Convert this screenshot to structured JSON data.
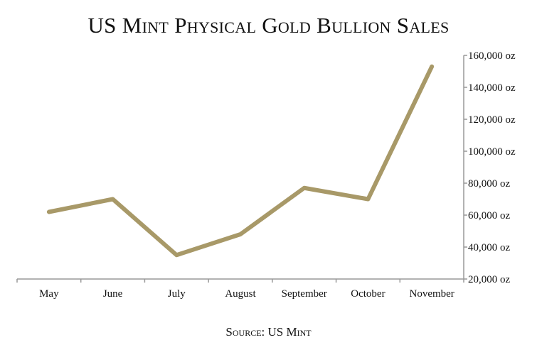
{
  "chart_data": {
    "type": "line",
    "title": "US Mint Physical Gold Bullion Sales",
    "source": "Source: US Mint",
    "categories": [
      "May",
      "June",
      "July",
      "August",
      "September",
      "October",
      "November"
    ],
    "series": [
      {
        "values": [
          62000,
          70000,
          35000,
          48000,
          77000,
          70000,
          153000
        ],
        "color": "#a89968"
      }
    ],
    "ylim": [
      20000,
      160000
    ],
    "yticks": [
      20000,
      40000,
      60000,
      80000,
      100000,
      120000,
      140000,
      160000
    ],
    "ytick_labels": [
      "20,000 oz",
      "40,000 oz",
      "60,000 oz",
      "80,000 oz",
      "100,000 oz",
      "120,000 oz",
      "140,000 oz",
      "160,000 oz"
    ],
    "y_axis_position": "right",
    "grid": false,
    "legend": "none"
  }
}
